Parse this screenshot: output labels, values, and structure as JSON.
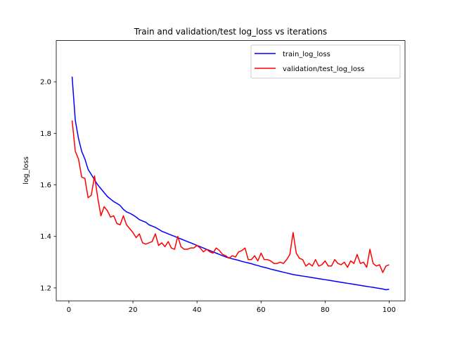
{
  "chart_data": {
    "type": "line",
    "title": "Train and validation/test log_loss vs iterations",
    "xlabel": "",
    "ylabel": "log_loss",
    "xlim": [
      -3.95,
      104.95
    ],
    "ylim": [
      1.15,
      2.16
    ],
    "xticks": [
      0,
      20,
      40,
      60,
      80,
      100
    ],
    "yticks": [
      1.2,
      1.4,
      1.6,
      1.8,
      2.0
    ],
    "ytick_labels": [
      "1.2",
      "1.4",
      "1.6",
      "1.8",
      "2.0"
    ],
    "grid": false,
    "legend_position": "upper right",
    "series": [
      {
        "name": "train_log_loss",
        "color": "#0000ff",
        "x": [
          1,
          2,
          3,
          4,
          5,
          6,
          7,
          8,
          9,
          10,
          11,
          12,
          13,
          14,
          15,
          16,
          17,
          18,
          19,
          20,
          21,
          22,
          23,
          24,
          25,
          26,
          27,
          28,
          29,
          30,
          31,
          32,
          33,
          34,
          35,
          36,
          37,
          38,
          39,
          40,
          41,
          42,
          43,
          44,
          45,
          46,
          47,
          48,
          49,
          50,
          51,
          52,
          53,
          54,
          55,
          56,
          57,
          58,
          59,
          60,
          61,
          62,
          63,
          64,
          65,
          66,
          67,
          68,
          69,
          70,
          71,
          72,
          73,
          74,
          75,
          76,
          77,
          78,
          79,
          80,
          81,
          82,
          83,
          84,
          85,
          86,
          87,
          88,
          89,
          90,
          91,
          92,
          93,
          94,
          95,
          96,
          97,
          98,
          99,
          100
        ],
        "y": [
          2.02,
          1.85,
          1.78,
          1.73,
          1.7,
          1.66,
          1.64,
          1.62,
          1.6,
          1.585,
          1.57,
          1.555,
          1.545,
          1.535,
          1.528,
          1.52,
          1.505,
          1.495,
          1.49,
          1.483,
          1.475,
          1.465,
          1.46,
          1.455,
          1.445,
          1.44,
          1.435,
          1.428,
          1.42,
          1.415,
          1.41,
          1.405,
          1.4,
          1.395,
          1.39,
          1.385,
          1.38,
          1.375,
          1.37,
          1.365,
          1.36,
          1.355,
          1.35,
          1.345,
          1.34,
          1.335,
          1.33,
          1.325,
          1.32,
          1.317,
          1.313,
          1.31,
          1.307,
          1.303,
          1.3,
          1.297,
          1.294,
          1.29,
          1.287,
          1.283,
          1.28,
          1.277,
          1.273,
          1.27,
          1.267,
          1.264,
          1.261,
          1.258,
          1.255,
          1.252,
          1.25,
          1.248,
          1.246,
          1.244,
          1.242,
          1.24,
          1.238,
          1.236,
          1.234,
          1.232,
          1.23,
          1.228,
          1.226,
          1.224,
          1.222,
          1.22,
          1.218,
          1.216,
          1.214,
          1.212,
          1.21,
          1.208,
          1.206,
          1.204,
          1.202,
          1.2,
          1.198,
          1.196,
          1.193,
          1.195
        ]
      },
      {
        "name": "validation/test_log_loss",
        "color": "#ff0000",
        "x": [
          1,
          2,
          3,
          4,
          5,
          6,
          7,
          8,
          9,
          10,
          11,
          12,
          13,
          14,
          15,
          16,
          17,
          18,
          19,
          20,
          21,
          22,
          23,
          24,
          25,
          26,
          27,
          28,
          29,
          30,
          31,
          32,
          33,
          34,
          35,
          36,
          37,
          38,
          39,
          40,
          41,
          42,
          43,
          44,
          45,
          46,
          47,
          48,
          49,
          50,
          51,
          52,
          53,
          54,
          55,
          56,
          57,
          58,
          59,
          60,
          61,
          62,
          63,
          64,
          65,
          66,
          67,
          68,
          69,
          70,
          71,
          72,
          73,
          74,
          75,
          76,
          77,
          78,
          79,
          80,
          81,
          82,
          83,
          84,
          85,
          86,
          87,
          88,
          89,
          90,
          91,
          92,
          93,
          94,
          95,
          96,
          97,
          98,
          99,
          100
        ],
        "y": [
          1.85,
          1.73,
          1.7,
          1.63,
          1.625,
          1.55,
          1.56,
          1.635,
          1.55,
          1.48,
          1.515,
          1.5,
          1.475,
          1.48,
          1.45,
          1.445,
          1.48,
          1.445,
          1.43,
          1.415,
          1.395,
          1.41,
          1.375,
          1.37,
          1.375,
          1.38,
          1.41,
          1.365,
          1.375,
          1.36,
          1.38,
          1.355,
          1.35,
          1.4,
          1.36,
          1.35,
          1.35,
          1.355,
          1.355,
          1.365,
          1.355,
          1.34,
          1.35,
          1.34,
          1.335,
          1.355,
          1.345,
          1.33,
          1.325,
          1.315,
          1.325,
          1.32,
          1.34,
          1.345,
          1.355,
          1.31,
          1.31,
          1.325,
          1.305,
          1.335,
          1.31,
          1.31,
          1.305,
          1.295,
          1.295,
          1.3,
          1.295,
          1.31,
          1.33,
          1.415,
          1.335,
          1.315,
          1.31,
          1.285,
          1.295,
          1.285,
          1.31,
          1.285,
          1.29,
          1.305,
          1.285,
          1.285,
          1.31,
          1.295,
          1.29,
          1.3,
          1.28,
          1.305,
          1.295,
          1.33,
          1.295,
          1.3,
          1.28,
          1.35,
          1.295,
          1.285,
          1.29,
          1.26,
          1.285,
          1.29
        ]
      }
    ]
  }
}
